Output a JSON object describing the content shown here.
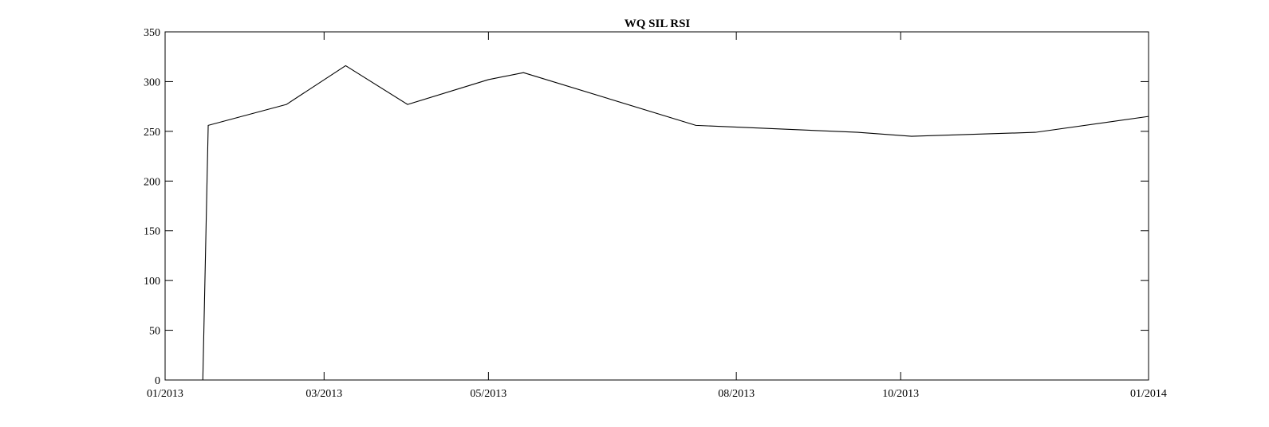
{
  "chart_data": {
    "type": "line",
    "title": "WQ SIL RSI",
    "xlabel": "",
    "ylabel": "",
    "grid": false,
    "x_tick_labels": [
      "01/2013",
      "03/2013",
      "05/2013",
      "08/2013",
      "10/2013",
      "01/2014"
    ],
    "x_tick_dates": [
      "2013-01-01",
      "2013-03-01",
      "2013-05-01",
      "2013-08-01",
      "2013-10-01",
      "2014-01-01"
    ],
    "xlim": [
      "2013-01-01",
      "2014-01-01"
    ],
    "ylim": [
      0,
      350
    ],
    "y_ticks": [
      0,
      50,
      100,
      150,
      200,
      250,
      300,
      350
    ],
    "series": [
      {
        "name": "WQ SIL RSI",
        "color": "#000000",
        "x": [
          "2013-01-01",
          "2013-01-15",
          "2013-01-17",
          "2013-02-15",
          "2013-03-09",
          "2013-04-01",
          "2013-05-01",
          "2013-05-14",
          "2013-07-17",
          "2013-09-15",
          "2013-10-05",
          "2013-11-20",
          "2014-01-01"
        ],
        "y": [
          0,
          0,
          256,
          277,
          316,
          277,
          302,
          309,
          256,
          249,
          245,
          249,
          265
        ]
      }
    ]
  }
}
